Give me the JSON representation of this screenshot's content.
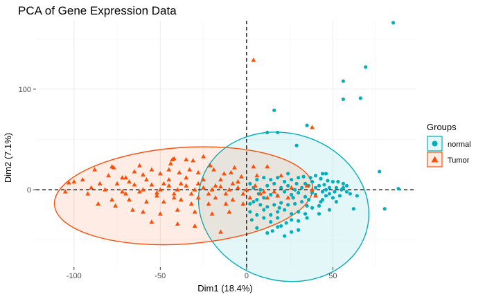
{
  "chart_data": {
    "type": "scatter",
    "title": "PCA of Gene Expression Data",
    "xlabel": "Dim1 (18.4%)",
    "ylabel": "Dim2 (7.1%)",
    "xlim": [
      -122,
      98
    ],
    "ylim": [
      -77,
      168
    ],
    "x_ticks": [
      -100,
      -50,
      0,
      50
    ],
    "y_ticks": [
      0,
      100
    ],
    "x_tick_labels": [
      "-100",
      "-50",
      "0",
      "50"
    ],
    "y_tick_labels": [
      "0",
      "100"
    ],
    "reference_lines": {
      "x": 0,
      "y": 0,
      "style": "dashed"
    },
    "grid": true,
    "legend": {
      "title": "Groups",
      "placement": "right"
    },
    "series": [
      {
        "name": "normal",
        "color": "#00AFBB",
        "marker": "circle",
        "ellipse": {
          "cx": 21.5,
          "cy": -17,
          "rx": 50,
          "ry": 73,
          "angle_deg": 18
        },
        "points": [
          [
            85,
            166
          ],
          [
            69,
            122
          ],
          [
            56,
            108
          ],
          [
            66,
            91
          ],
          [
            56,
            90
          ],
          [
            16,
            79
          ],
          [
            35,
            64
          ],
          [
            12,
            57
          ],
          [
            18,
            57
          ],
          [
            29,
            44
          ],
          [
            77,
            18
          ],
          [
            44,
            16
          ],
          [
            46,
            16
          ],
          [
            88,
            1
          ],
          [
            80,
            -19
          ],
          [
            24,
            16
          ],
          [
            33,
            13
          ],
          [
            40,
            14
          ],
          [
            43,
            11
          ],
          [
            45,
            5
          ],
          [
            47,
            9
          ],
          [
            50,
            8
          ],
          [
            53,
            8
          ],
          [
            56,
            6
          ],
          [
            48,
            2
          ],
          [
            52,
            2
          ],
          [
            55,
            0
          ],
          [
            58,
            -2
          ],
          [
            60,
            -4
          ],
          [
            64,
            -6
          ],
          [
            62,
            -19
          ],
          [
            48,
            -20
          ],
          [
            42,
            -24
          ],
          [
            35,
            -28
          ],
          [
            30,
            -31
          ],
          [
            26,
            -30
          ],
          [
            23,
            -33
          ],
          [
            20,
            -36
          ],
          [
            18,
            -37
          ],
          [
            15,
            -41
          ],
          [
            12,
            -43
          ],
          [
            6,
            -38
          ],
          [
            2,
            -14
          ],
          [
            6,
            -10
          ],
          [
            10,
            -8
          ],
          [
            14,
            -5
          ],
          [
            18,
            -6
          ],
          [
            22,
            -2
          ],
          [
            26,
            -5
          ],
          [
            30,
            -3
          ],
          [
            34,
            -7
          ],
          [
            38,
            -3
          ],
          [
            40,
            -5
          ],
          [
            36,
            -10
          ],
          [
            32,
            -12
          ],
          [
            28,
            -14
          ],
          [
            24,
            -15
          ],
          [
            20,
            -13
          ],
          [
            16,
            -15
          ],
          [
            12,
            -17
          ],
          [
            8,
            -15
          ],
          [
            4,
            -12
          ],
          [
            2,
            -22
          ],
          [
            6,
            -25
          ],
          [
            10,
            -28
          ],
          [
            14,
            -25
          ],
          [
            18,
            -22
          ],
          [
            22,
            -20
          ],
          [
            26,
            -24
          ],
          [
            30,
            -22
          ],
          [
            34,
            -24
          ],
          [
            38,
            -18
          ],
          [
            42,
            -16
          ],
          [
            44,
            -10
          ],
          [
            46,
            -6
          ],
          [
            48,
            -4
          ],
          [
            50,
            -8
          ],
          [
            44,
            -2
          ],
          [
            40,
            2
          ],
          [
            36,
            4
          ],
          [
            32,
            2
          ],
          [
            28,
            0
          ],
          [
            24,
            4
          ],
          [
            20,
            2
          ],
          [
            16,
            6
          ],
          [
            12,
            4
          ],
          [
            8,
            0
          ],
          [
            4,
            2
          ],
          [
            2,
            6
          ],
          [
            6,
            10
          ],
          [
            10,
            12
          ],
          [
            14,
            10
          ],
          [
            18,
            12
          ],
          [
            22,
            8
          ],
          [
            26,
            10
          ],
          [
            30,
            12
          ],
          [
            34,
            6
          ],
          [
            38,
            8
          ],
          [
            42,
            4
          ],
          [
            46,
            0
          ],
          [
            52,
            -12
          ],
          [
            54,
            -6
          ],
          [
            56,
            2
          ],
          [
            58,
            4
          ],
          [
            30,
            -40
          ],
          [
            26,
            -42
          ],
          [
            22,
            -46
          ],
          [
            18,
            -28
          ],
          [
            14,
            -32
          ],
          [
            10,
            -20
          ],
          [
            7,
            -4
          ],
          [
            3,
            -30
          ],
          [
            19,
            -18
          ],
          [
            27,
            -8
          ],
          [
            35,
            -16
          ],
          [
            43,
            -12
          ],
          [
            51,
            -2
          ],
          [
            37,
            12
          ],
          [
            29,
            6
          ]
        ]
      },
      {
        "name": "Tumor",
        "color": "#FC4E07",
        "marker": "triangle",
        "ellipse": {
          "cx": -36.5,
          "cy": -6,
          "rx": 75,
          "ry": 48,
          "angle_deg": -4
        },
        "points": [
          [
            4,
            129
          ],
          [
            38,
            62
          ],
          [
            -7,
            22
          ],
          [
            12,
            23
          ],
          [
            4,
            23
          ],
          [
            -25,
            33
          ],
          [
            -42,
            31
          ],
          [
            -43,
            30
          ],
          [
            -35,
            30
          ],
          [
            -31,
            29
          ],
          [
            -21,
            24
          ],
          [
            -78,
            23
          ],
          [
            -77,
            22
          ],
          [
            -88,
            20
          ],
          [
            -45,
            20
          ],
          [
            -28,
            17
          ],
          [
            -19,
            20
          ],
          [
            -13,
            16
          ],
          [
            -39,
            17
          ],
          [
            -50,
            16
          ],
          [
            -60,
            15
          ],
          [
            -70,
            12
          ],
          [
            -80,
            14
          ],
          [
            -95,
            10
          ],
          [
            -100,
            8
          ],
          [
            -103,
            7
          ],
          [
            -85,
            6
          ],
          [
            -75,
            6
          ],
          [
            -65,
            5
          ],
          [
            -55,
            5
          ],
          [
            -45,
            4
          ],
          [
            -35,
            4
          ],
          [
            -25,
            2
          ],
          [
            -15,
            3
          ],
          [
            -5,
            2
          ],
          [
            5,
            4
          ],
          [
            -90,
            2
          ],
          [
            -82,
            0
          ],
          [
            -72,
            -2
          ],
          [
            -62,
            -2
          ],
          [
            -52,
            -3
          ],
          [
            -42,
            -4
          ],
          [
            -32,
            -4
          ],
          [
            -22,
            -4
          ],
          [
            -12,
            -4
          ],
          [
            -2,
            -4
          ],
          [
            8,
            -4
          ],
          [
            18,
            -6
          ],
          [
            -78,
            -10
          ],
          [
            -68,
            -10
          ],
          [
            -58,
            -12
          ],
          [
            -48,
            -12
          ],
          [
            -38,
            -10
          ],
          [
            -28,
            -8
          ],
          [
            -18,
            -8
          ],
          [
            -8,
            -10
          ],
          [
            2,
            -8
          ],
          [
            12,
            -8
          ],
          [
            24,
            -8
          ],
          [
            -60,
            -22
          ],
          [
            -50,
            -24
          ],
          [
            -40,
            -20
          ],
          [
            -30,
            -22
          ],
          [
            -20,
            -24
          ],
          [
            -10,
            -22
          ],
          [
            -40,
            -34
          ],
          [
            -30,
            -36
          ],
          [
            -15,
            -42
          ],
          [
            -55,
            -32
          ],
          [
            -35,
            12
          ],
          [
            -25,
            10
          ],
          [
            -15,
            10
          ],
          [
            -5,
            8
          ],
          [
            -45,
            10
          ],
          [
            -65,
            18
          ],
          [
            -55,
            20
          ],
          [
            -48,
            6
          ],
          [
            -38,
            6
          ],
          [
            -28,
            6
          ],
          [
            -18,
            4
          ],
          [
            -8,
            6
          ],
          [
            16,
            -2
          ],
          [
            26,
            2
          ],
          [
            35,
            4
          ],
          [
            38,
            0
          ],
          [
            40,
            -6
          ],
          [
            -92,
            -4
          ],
          [
            -105,
            -2
          ],
          [
            -70,
            -4
          ],
          [
            -60,
            0
          ],
          [
            -50,
            0
          ],
          [
            -40,
            0
          ],
          [
            -30,
            0
          ],
          [
            -20,
            0
          ],
          [
            -10,
            0
          ],
          [
            0,
            0
          ],
          [
            10,
            -2
          ],
          [
            -86,
            -14
          ],
          [
            -76,
            -16
          ],
          [
            -66,
            -20
          ],
          [
            -52,
            -6
          ],
          [
            -42,
            -8
          ],
          [
            -32,
            -14
          ],
          [
            -22,
            -14
          ],
          [
            -12,
            -14
          ],
          [
            -2,
            -14
          ],
          [
            -58,
            10
          ],
          [
            -68,
            8
          ],
          [
            -62,
            24
          ],
          [
            -72,
            12
          ],
          [
            -33,
            20
          ],
          [
            -9,
            17
          ],
          [
            -3,
            13
          ],
          [
            6,
            14
          ],
          [
            20,
            14
          ],
          [
            -44,
            26
          ]
        ]
      }
    ]
  }
}
